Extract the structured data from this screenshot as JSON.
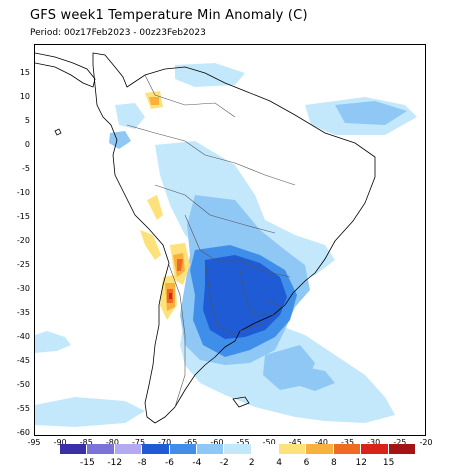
{
  "title": "GFS week1 Temperature Min Anomaly (C)",
  "period": "Period: 00z17Feb2023 - 00z23Feb2023",
  "lat_ticks": [
    "15",
    "10",
    "5",
    "0",
    "-5",
    "-10",
    "-15",
    "-20",
    "-25",
    "-30",
    "-35",
    "-40",
    "-45",
    "-50",
    "-55",
    "-60"
  ],
  "lon_ticks": [
    "-95",
    "-90",
    "-85",
    "-80",
    "-75",
    "-70",
    "-65",
    "-60",
    "-55",
    "-50",
    "-45",
    "-40",
    "-35",
    "-30",
    "-25",
    "-20"
  ],
  "legend": {
    "labels": [
      "-15",
      "-12",
      "-8",
      "-6",
      "-4",
      "-2",
      "2",
      "4",
      "6",
      "8",
      "12",
      "15"
    ],
    "colors": [
      "#3b2fa8",
      "#7b73d9",
      "#b4aaf2",
      "#1e5bd4",
      "#3f8fea",
      "#8fc7f5",
      "#c4e8fb",
      "#ffffff",
      "#fde17a",
      "#f7b13c",
      "#ef6a23",
      "#d9231a",
      "#a51315"
    ]
  },
  "colors": {
    "very_light_cold": "#c4e8fb",
    "light_cold": "#8fc7f5",
    "moderate_cold": "#3f8fea",
    "strong_cold": "#1e5bd4",
    "light_warm": "#fde17a",
    "moderate_warm": "#f7b13c",
    "strong_warm": "#ef6a23",
    "very_warm": "#d9231a"
  }
}
